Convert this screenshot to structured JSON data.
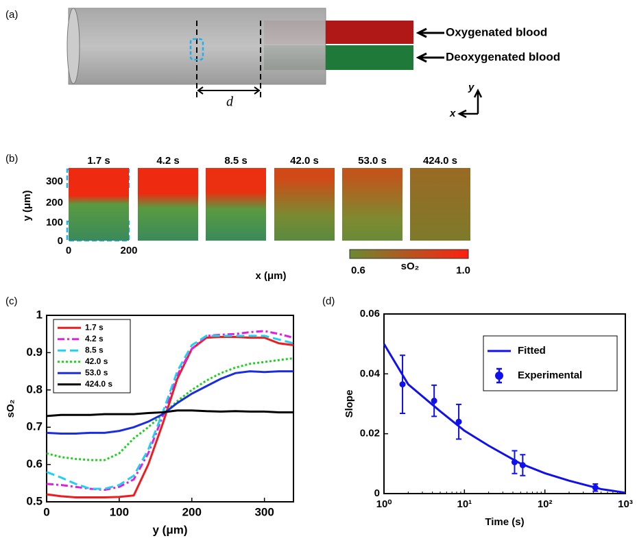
{
  "panel_a": {
    "label": "(a)",
    "oxy": "Oxygenated blood",
    "deoxy": "Deoxygenated blood",
    "d": "d",
    "x_axis": "x",
    "y_axis": "y"
  },
  "panel_b": {
    "label": "(b)",
    "times": [
      "1.7 s",
      "4.2 s",
      "8.5 s",
      "42.0 s",
      "53.0 s",
      "424.0 s"
    ],
    "ylabel": "y (μm)",
    "yticks": [
      "0",
      "100",
      "200",
      "300"
    ],
    "xticks": [
      "0",
      "200"
    ],
    "xlabel": "x (μm)",
    "colorbar": {
      "label": "sO₂",
      "min": "0.6",
      "max": "1.0"
    }
  },
  "chart_data": [
    {
      "type": "line",
      "panel": "(c)",
      "xlabel": "y (μm)",
      "ylabel": "sO₂",
      "xlim": [
        0,
        340
      ],
      "ylim": [
        0.5,
        1
      ],
      "xticks": [
        0,
        100,
        200,
        300
      ],
      "yticks": [
        0.5,
        0.6,
        0.7,
        0.8,
        0.9,
        1
      ],
      "legend": "upper left",
      "x": [
        0,
        20,
        40,
        60,
        80,
        100,
        120,
        140,
        160,
        180,
        200,
        220,
        240,
        260,
        280,
        300,
        320,
        340
      ],
      "series": [
        {
          "name": "1.7 s",
          "color": "#ee1c1c",
          "dash": "solid",
          "values": [
            0.52,
            0.515,
            0.512,
            0.512,
            0.512,
            0.513,
            0.517,
            0.6,
            0.71,
            0.83,
            0.91,
            0.94,
            0.942,
            0.942,
            0.94,
            0.94,
            0.925,
            0.92
          ]
        },
        {
          "name": "4.2 s",
          "color": "#e020e0",
          "dash": "dashdot",
          "values": [
            0.548,
            0.545,
            0.54,
            0.535,
            0.532,
            0.54,
            0.56,
            0.63,
            0.73,
            0.84,
            0.91,
            0.945,
            0.948,
            0.95,
            0.955,
            0.958,
            0.95,
            0.94
          ]
        },
        {
          "name": "8.5 s",
          "color": "#20d0f0",
          "dash": "dashed",
          "values": [
            0.58,
            0.565,
            0.548,
            0.535,
            0.535,
            0.545,
            0.57,
            0.64,
            0.74,
            0.85,
            0.92,
            0.945,
            0.945,
            0.945,
            0.945,
            0.945,
            0.935,
            0.925
          ]
        },
        {
          "name": "42.0 s",
          "color": "#20d020",
          "dash": "dotted",
          "values": [
            0.63,
            0.62,
            0.615,
            0.612,
            0.612,
            0.63,
            0.67,
            0.7,
            0.735,
            0.77,
            0.8,
            0.825,
            0.845,
            0.86,
            0.87,
            0.875,
            0.88,
            0.885
          ]
        },
        {
          "name": "53.0 s",
          "color": "#1a2ee0",
          "dash": "solid",
          "values": [
            0.685,
            0.683,
            0.683,
            0.685,
            0.685,
            0.69,
            0.7,
            0.715,
            0.735,
            0.765,
            0.79,
            0.81,
            0.83,
            0.845,
            0.85,
            0.848,
            0.85,
            0.85
          ]
        },
        {
          "name": "424.0 s",
          "color": "#000000",
          "dash": "solid",
          "values": [
            0.73,
            0.733,
            0.733,
            0.733,
            0.735,
            0.735,
            0.735,
            0.738,
            0.74,
            0.745,
            0.745,
            0.743,
            0.742,
            0.743,
            0.742,
            0.742,
            0.74,
            0.74
          ]
        }
      ]
    },
    {
      "type": "scatter",
      "panel": "(d)",
      "xlabel": "Time (s)",
      "ylabel": "Slope",
      "xscale": "log",
      "xlim": [
        1,
        1000
      ],
      "ylim": [
        0,
        0.06
      ],
      "xticks": [
        {
          "value": 1,
          "label": "10⁰"
        },
        {
          "value": 10,
          "label": "10¹"
        },
        {
          "value": 100,
          "label": "10²"
        },
        {
          "value": 1000,
          "label": "10³"
        }
      ],
      "yticks": [
        0,
        0.02,
        0.04,
        0.06
      ],
      "legend": "upper right",
      "series": [
        {
          "name": "Fitted",
          "color": "#1010ee",
          "style": "line",
          "x": [
            1,
            2,
            5,
            10,
            20,
            50,
            100,
            200,
            500,
            1000
          ],
          "values": [
            0.05,
            0.0365,
            0.0275,
            0.021,
            0.016,
            0.01,
            0.0068,
            0.0043,
            0.0015,
            0.0003
          ]
        },
        {
          "name": "Experimental",
          "color": "#1010ee",
          "style": "errorbar",
          "x": [
            1.7,
            4.2,
            8.5,
            42,
            53,
            424
          ],
          "values": [
            0.0365,
            0.031,
            0.024,
            0.0105,
            0.0095,
            0.002
          ],
          "errors": [
            0.0097,
            0.0052,
            0.0058,
            0.0038,
            0.0035,
            0.0012
          ]
        }
      ]
    }
  ]
}
